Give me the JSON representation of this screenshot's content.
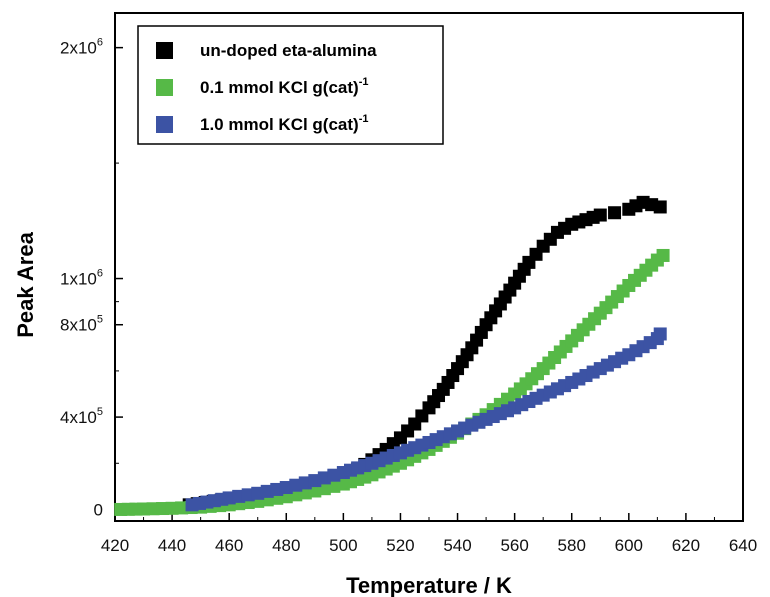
{
  "chart_data": {
    "type": "scatter",
    "title": "",
    "xlabel": "Temperature / K",
    "ylabel": "Peak Area",
    "xlim": [
      420,
      640
    ],
    "ylim": [
      -50000,
      2150000
    ],
    "x_ticks": [
      420,
      440,
      460,
      480,
      500,
      520,
      540,
      560,
      580,
      600,
      620,
      640
    ],
    "y_ticks": [
      {
        "value": 0,
        "base": "0",
        "exp": ""
      },
      {
        "value": 400000,
        "base": "4x10",
        "exp": "5"
      },
      {
        "value": 800000,
        "base": "8x10",
        "exp": "5"
      },
      {
        "value": 1000000,
        "base": "1x10",
        "exp": "6"
      },
      {
        "value": 2000000,
        "base": "2x10",
        "exp": "6"
      }
    ],
    "grid": false,
    "legend_position": "top-left",
    "marker": "square",
    "series": [
      {
        "name": "un-doped eta-alumina",
        "legend": {
          "main": "un-doped eta-alumina",
          "sup": ""
        },
        "color": "#000000",
        "x": [
          446,
          460,
          470,
          480,
          490,
          500,
          505,
          510,
          515,
          520,
          525,
          530,
          535,
          540,
          545,
          550,
          555,
          560,
          565,
          570,
          575,
          580,
          585,
          590,
          595,
          600,
          605,
          608,
          611
        ],
        "y": [
          20000,
          45000,
          60000,
          80000,
          110000,
          140000,
          175000,
          215000,
          260000,
          310000,
          370000,
          440000,
          520000,
          610000,
          700000,
          800000,
          890000,
          980000,
          1070000,
          1140000,
          1200000,
          1235000,
          1255000,
          1275000,
          1285000,
          1300000,
          1330000,
          1320000,
          1310000
        ]
      },
      {
        "name": "0.1 mmol KCl g(cat)-1",
        "legend": {
          "main": "0.1 mmol KCl g(cat)",
          "sup": "-1"
        },
        "color": "#56b947",
        "x": [
          422,
          430,
          440,
          450,
          460,
          470,
          480,
          490,
          500,
          510,
          520,
          530,
          540,
          550,
          560,
          570,
          580,
          590,
          600,
          610,
          612
        ],
        "y": [
          0,
          2000,
          5000,
          10000,
          20000,
          35000,
          55000,
          80000,
          110000,
          150000,
          200000,
          260000,
          330000,
          410000,
          500000,
          610000,
          730000,
          850000,
          970000,
          1080000,
          1100000
        ]
      },
      {
        "name": "1.0 mmol KCl g(cat)-1",
        "legend": {
          "main": "1.0 mmol KCl g(cat)",
          "sup": "-1"
        },
        "color": "#3c53a4",
        "x": [
          447,
          460,
          470,
          480,
          490,
          500,
          510,
          520,
          530,
          540,
          550,
          560,
          570,
          580,
          590,
          600,
          610,
          611
        ],
        "y": [
          20000,
          50000,
          70000,
          95000,
          125000,
          160000,
          200000,
          245000,
          290000,
          340000,
          390000,
          440000,
          495000,
          550000,
          610000,
          670000,
          740000,
          760000
        ]
      }
    ]
  }
}
